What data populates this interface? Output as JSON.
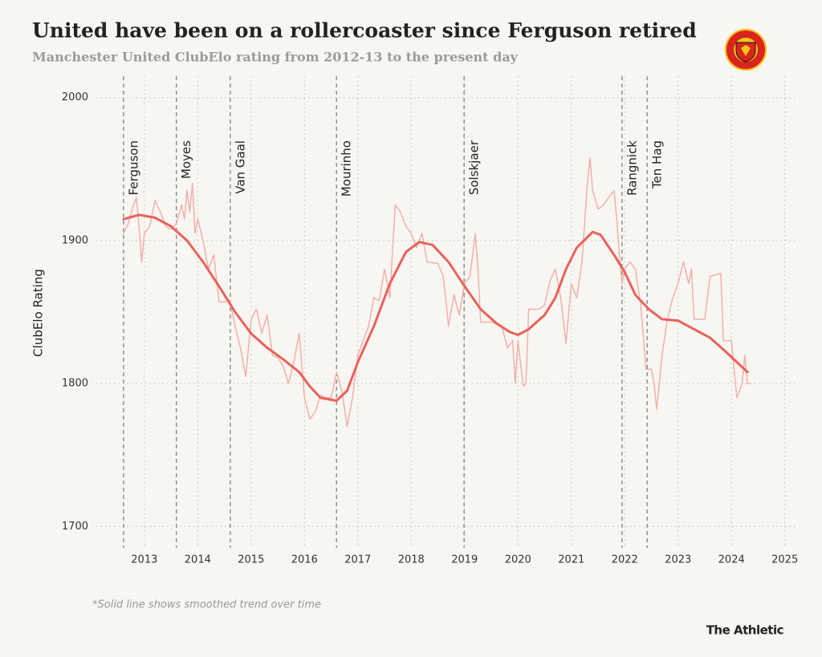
{
  "chart_data": {
    "type": "line",
    "title": "United have been on a rollercoaster since Ferguson retired",
    "subtitle": "Manchester United ClubElo rating from 2012-13 to the present day",
    "y_label": "ClubElo Rating",
    "footnote": "*Solid line shows smoothed trend over time",
    "source": "The Athletic",
    "xlim": [
      2012.1,
      2025.2
    ],
    "xticks": [
      2013,
      2014,
      2015,
      2016,
      2017,
      2018,
      2019,
      2020,
      2021,
      2022,
      2023,
      2024,
      2025
    ],
    "ylim": [
      1685,
      2015
    ],
    "yticks": [
      1700,
      1800,
      1900,
      2000
    ],
    "grid": true,
    "annotations": [
      {
        "label": "Ferguson",
        "x": 2012.61
      },
      {
        "label": "Moyes",
        "x": 2013.6
      },
      {
        "label": "Van Gaal",
        "x": 2014.61
      },
      {
        "label": "Mourinho",
        "x": 2016.6
      },
      {
        "label": "Solskjaer",
        "x": 2018.99
      },
      {
        "label": "Rangnick",
        "x": 2021.95
      },
      {
        "label": "Ten Hag",
        "x": 2022.42
      }
    ],
    "series": [
      {
        "color": "#f2b0aa",
        "width": 1.5,
        "x": [
          2012.61,
          2012.7,
          2012.8,
          2012.85,
          2012.9,
          2012.95,
          2013.0,
          2013.1,
          2013.2,
          2013.3,
          2013.4,
          2013.5,
          2013.6,
          2013.7,
          2013.75,
          2013.8,
          2013.85,
          2013.9,
          2013.95,
          2014.0,
          2014.1,
          2014.2,
          2014.3,
          2014.4,
          2014.5,
          2014.6,
          2014.7,
          2014.8,
          2014.9,
          2015.0,
          2015.1,
          2015.2,
          2015.3,
          2015.4,
          2015.5,
          2015.6,
          2015.7,
          2015.8,
          2015.9,
          2016.0,
          2016.1,
          2016.2,
          2016.3,
          2016.4,
          2016.5,
          2016.6,
          2016.7,
          2016.8,
          2016.9,
          2017.0,
          2017.1,
          2017.2,
          2017.3,
          2017.4,
          2017.5,
          2017.6,
          2017.7,
          2017.8,
          2017.9,
          2018.0,
          2018.1,
          2018.2,
          2018.3,
          2018.5,
          2018.6,
          2018.7,
          2018.8,
          2018.9,
          2019.0,
          2019.1,
          2019.2,
          2019.25,
          2019.3,
          2019.5,
          2019.7,
          2019.8,
          2019.9,
          2019.95,
          2020.0,
          2020.1,
          2020.15,
          2020.2,
          2020.4,
          2020.5,
          2020.6,
          2020.7,
          2020.8,
          2020.9,
          2021.0,
          2021.1,
          2021.2,
          2021.3,
          2021.35,
          2021.4,
          2021.5,
          2021.6,
          2021.7,
          2021.8,
          2021.85,
          2021.9,
          2021.95,
          2022.0,
          2022.1,
          2022.2,
          2022.3,
          2022.4,
          2022.5,
          2022.55,
          2022.6,
          2022.7,
          2022.8,
          2022.9,
          2023.0,
          2023.1,
          2023.2,
          2023.25,
          2023.3,
          2023.5,
          2023.6,
          2023.8,
          2023.85,
          2024.0,
          2024.05,
          2024.1,
          2024.2,
          2024.25,
          2024.3,
          2024.35
        ],
        "values": [
          1905,
          1912,
          1925,
          1930,
          1910,
          1885,
          1905,
          1910,
          1928,
          1920,
          1910,
          1908,
          1912,
          1925,
          1915,
          1935,
          1920,
          1940,
          1905,
          1915,
          1900,
          1880,
          1890,
          1857,
          1857,
          1858,
          1840,
          1825,
          1805,
          1845,
          1852,
          1835,
          1848,
          1820,
          1818,
          1812,
          1800,
          1815,
          1835,
          1790,
          1775,
          1780,
          1792,
          1790,
          1790,
          1808,
          1795,
          1770,
          1790,
          1820,
          1830,
          1840,
          1860,
          1858,
          1880,
          1860,
          1925,
          1920,
          1910,
          1905,
          1895,
          1905,
          1885,
          1884,
          1875,
          1840,
          1862,
          1848,
          1870,
          1875,
          1905,
          1880,
          1843,
          1843,
          1840,
          1825,
          1830,
          1800,
          1830,
          1798,
          1800,
          1852,
          1852,
          1855,
          1872,
          1880,
          1860,
          1828,
          1870,
          1860,
          1885,
          1940,
          1958,
          1935,
          1922,
          1925,
          1930,
          1935,
          1915,
          1890,
          1870,
          1880,
          1885,
          1880,
          1855,
          1810,
          1810,
          1800,
          1782,
          1820,
          1845,
          1860,
          1870,
          1885,
          1870,
          1880,
          1845,
          1845,
          1875,
          1877,
          1830,
          1830,
          1810,
          1790,
          1800,
          1820,
          1800,
          1800
        ]
      },
      {
        "color": "#e8625a",
        "width": 3,
        "x": [
          2012.61,
          2012.9,
          2013.2,
          2013.5,
          2013.8,
          2014.1,
          2014.4,
          2014.7,
          2015.0,
          2015.3,
          2015.6,
          2015.9,
          2016.1,
          2016.3,
          2016.6,
          2016.8,
          2017.0,
          2017.3,
          2017.6,
          2017.9,
          2018.15,
          2018.4,
          2018.7,
          2019.0,
          2019.3,
          2019.6,
          2019.85,
          2020.0,
          2020.2,
          2020.5,
          2020.7,
          2020.9,
          2021.1,
          2021.4,
          2021.55,
          2021.8,
          2022.0,
          2022.2,
          2022.45,
          2022.7,
          2023.0,
          2023.3,
          2023.6,
          2023.9,
          2024.1,
          2024.3
        ],
        "values": [
          1915,
          1918,
          1916,
          1910,
          1900,
          1885,
          1868,
          1850,
          1835,
          1825,
          1817,
          1808,
          1798,
          1790,
          1788,
          1795,
          1815,
          1840,
          1870,
          1892,
          1899,
          1897,
          1885,
          1868,
          1852,
          1842,
          1836,
          1834,
          1838,
          1848,
          1860,
          1880,
          1895,
          1906,
          1904,
          1890,
          1878,
          1862,
          1852,
          1845,
          1844,
          1838,
          1832,
          1822,
          1815,
          1808
        ]
      }
    ]
  }
}
